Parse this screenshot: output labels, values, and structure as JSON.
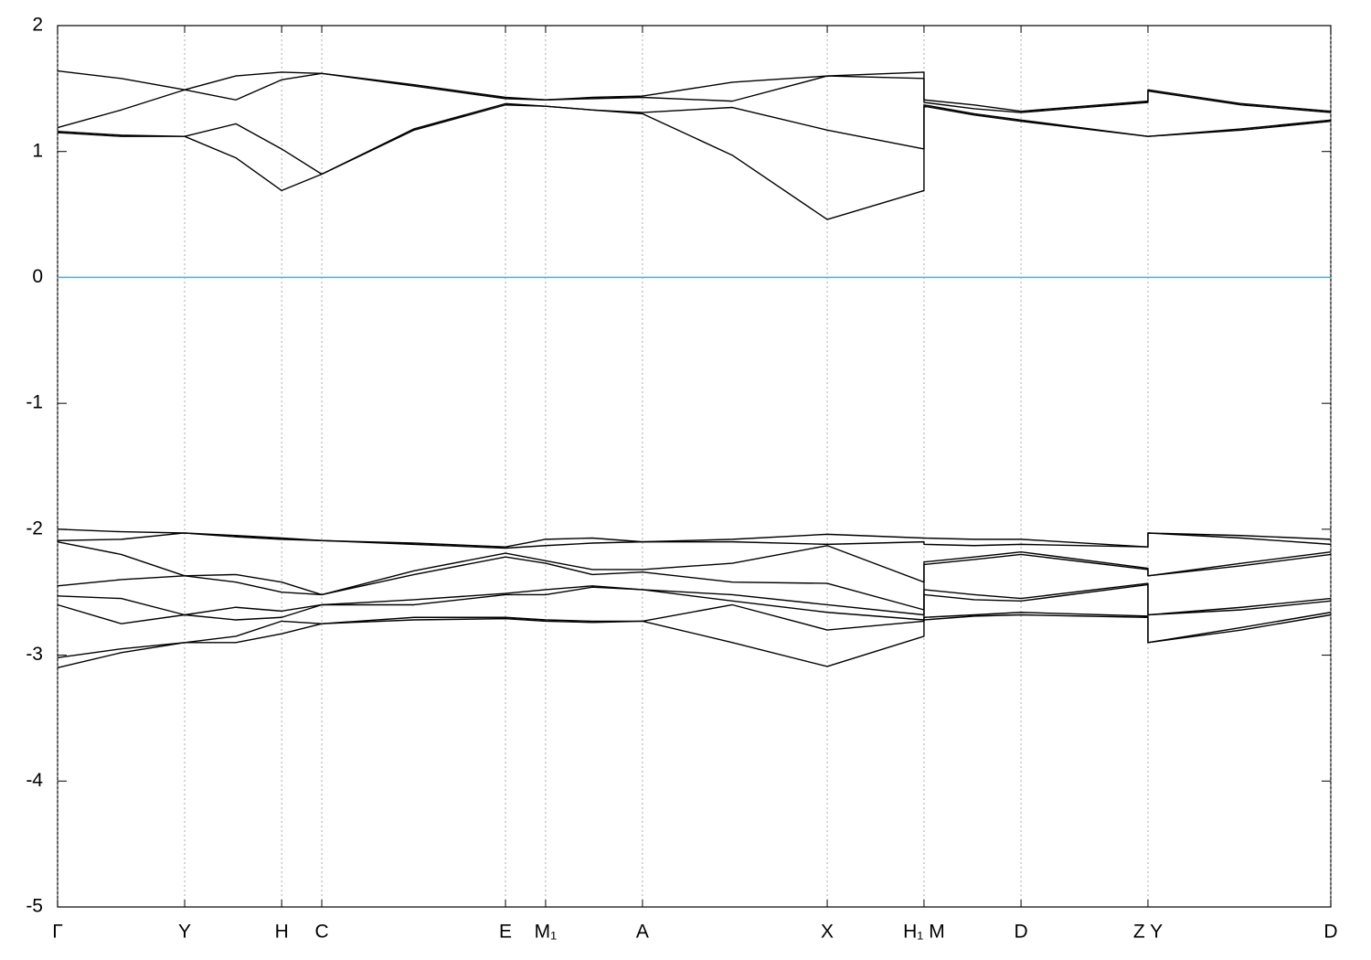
{
  "chart_data": {
    "type": "line",
    "x": [
      0,
      0.05,
      0.0998,
      0.14,
      0.176,
      0.2075,
      0.28,
      0.3518,
      0.3833,
      0.42,
      0.4594,
      0.53,
      0.6045,
      0.6805,
      0.6805,
      0.72,
      0.7567,
      0.8564,
      0.8564,
      0.93,
      1.0
    ],
    "xlim": [
      0,
      1
    ],
    "xticks": [
      {
        "value": 0,
        "label": "Γ"
      },
      {
        "value": 0.0998,
        "label": "Y"
      },
      {
        "value": 0.176,
        "label": "H"
      },
      {
        "value": 0.2075,
        "label": "C"
      },
      {
        "value": 0.3518,
        "label": "E"
      },
      {
        "value": 0.3833,
        "label": "M₁"
      },
      {
        "value": 0.4594,
        "label": "A"
      },
      {
        "value": 0.6045,
        "label": "X"
      },
      {
        "value": 0.6805,
        "label": "H₁ M"
      },
      {
        "value": 0.7567,
        "label": "D"
      },
      {
        "value": 0.8564,
        "label": "Z Y"
      },
      {
        "value": 1.0,
        "label": "D"
      }
    ],
    "ylim": [
      -5,
      2
    ],
    "yticks": [
      -5,
      -4,
      -3,
      -2,
      -1,
      0,
      1,
      2
    ],
    "grid": "x",
    "hline": {
      "value": 0,
      "color": "#4fb0c6"
    },
    "series": [
      {
        "color": "#000000",
        "values": [
          1.64,
          1.58,
          1.49,
          1.6,
          1.63,
          1.62,
          1.53,
          1.43,
          1.41,
          1.43,
          1.44,
          1.55,
          1.6,
          1.63,
          1.41,
          1.37,
          1.32,
          1.4,
          1.49,
          1.38,
          1.32
        ]
      },
      {
        "color": "#000000",
        "values": [
          1.19,
          1.33,
          1.49,
          1.41,
          1.57,
          1.62,
          1.52,
          1.42,
          1.41,
          1.42,
          1.43,
          1.4,
          1.6,
          1.58,
          1.39,
          1.34,
          1.31,
          1.39,
          1.48,
          1.37,
          1.31
        ]
      },
      {
        "color": "#000000",
        "values": [
          1.16,
          1.13,
          1.12,
          1.22,
          1.02,
          0.82,
          1.18,
          1.38,
          1.36,
          1.33,
          1.31,
          1.35,
          1.17,
          1.02,
          1.37,
          1.3,
          1.25,
          1.12,
          1.12,
          1.18,
          1.25
        ]
      },
      {
        "color": "#000000",
        "values": [
          1.15,
          1.12,
          1.12,
          0.95,
          0.69,
          0.82,
          1.17,
          1.37,
          1.36,
          1.33,
          1.3,
          0.97,
          0.46,
          0.69,
          1.36,
          1.29,
          1.24,
          1.12,
          1.12,
          1.17,
          1.24
        ]
      },
      {
        "color": "#000000",
        "values": [
          -2.0,
          -2.02,
          -2.03,
          -2.05,
          -2.07,
          -2.09,
          -2.11,
          -2.14,
          -2.08,
          -2.07,
          -2.1,
          -2.08,
          -2.04,
          -2.07,
          -2.07,
          -2.08,
          -2.08,
          -2.14,
          -2.03,
          -2.05,
          -2.08
        ]
      },
      {
        "color": "#000000",
        "values": [
          -2.09,
          -2.08,
          -2.03,
          -2.06,
          -2.08,
          -2.09,
          -2.12,
          -2.15,
          -2.13,
          -2.11,
          -2.1,
          -2.1,
          -2.12,
          -2.1,
          -2.12,
          -2.13,
          -2.12,
          -2.14,
          -2.03,
          -2.07,
          -2.12
        ]
      },
      {
        "color": "#000000",
        "values": [
          -2.1,
          -2.2,
          -2.37,
          -2.36,
          -2.42,
          -2.52,
          -2.33,
          -2.19,
          -2.25,
          -2.32,
          -2.32,
          -2.27,
          -2.13,
          -2.42,
          -2.26,
          -2.22,
          -2.18,
          -2.31,
          -2.37,
          -2.27,
          -2.18
        ]
      },
      {
        "color": "#000000",
        "values": [
          -2.45,
          -2.4,
          -2.37,
          -2.42,
          -2.5,
          -2.52,
          -2.36,
          -2.22,
          -2.27,
          -2.36,
          -2.34,
          -2.42,
          -2.43,
          -2.64,
          -2.28,
          -2.24,
          -2.2,
          -2.32,
          -2.37,
          -2.29,
          -2.2
        ]
      },
      {
        "color": "#000000",
        "values": [
          -2.53,
          -2.55,
          -2.68,
          -2.62,
          -2.65,
          -2.6,
          -2.56,
          -2.51,
          -2.48,
          -2.45,
          -2.48,
          -2.52,
          -2.6,
          -2.68,
          -2.48,
          -2.52,
          -2.55,
          -2.43,
          -2.68,
          -2.62,
          -2.55
        ]
      },
      {
        "color": "#000000",
        "values": [
          -2.6,
          -2.75,
          -2.68,
          -2.72,
          -2.7,
          -2.6,
          -2.6,
          -2.52,
          -2.52,
          -2.46,
          -2.48,
          -2.57,
          -2.66,
          -2.72,
          -2.52,
          -2.56,
          -2.57,
          -2.44,
          -2.68,
          -2.64,
          -2.57
        ]
      },
      {
        "color": "#000000",
        "values": [
          -3.02,
          -2.95,
          -2.9,
          -2.85,
          -2.73,
          -2.75,
          -2.7,
          -2.7,
          -2.72,
          -2.73,
          -2.73,
          -2.6,
          -2.8,
          -2.73,
          -2.7,
          -2.68,
          -2.66,
          -2.69,
          -2.9,
          -2.78,
          -2.66
        ]
      },
      {
        "color": "#000000",
        "values": [
          -3.1,
          -2.98,
          -2.9,
          -2.9,
          -2.83,
          -2.75,
          -2.72,
          -2.71,
          -2.73,
          -2.74,
          -2.73,
          -2.9,
          -3.09,
          -2.85,
          -2.72,
          -2.69,
          -2.68,
          -2.7,
          -2.9,
          -2.8,
          -2.68
        ]
      }
    ]
  }
}
